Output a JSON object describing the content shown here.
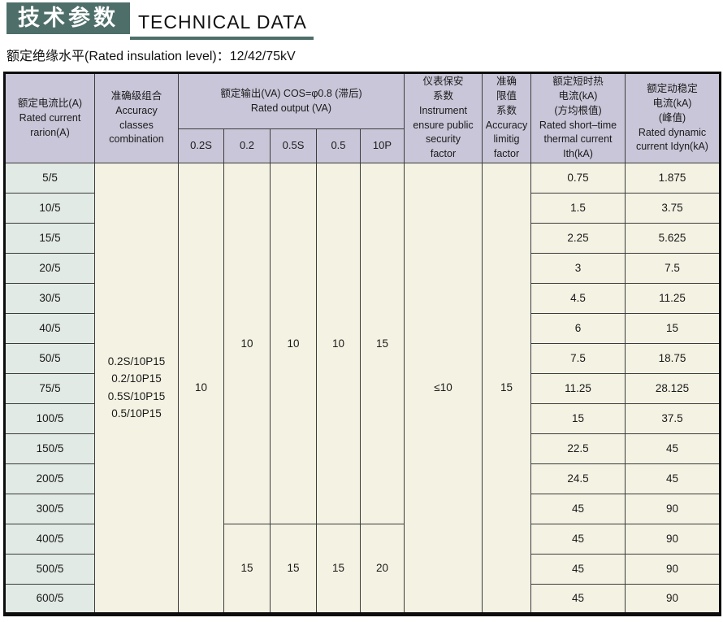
{
  "page": {
    "title_zh": "技术参数",
    "title_en": "TECHNICAL DATA",
    "subtitle": "额定绝缘水平(Rated insulation level)：12/42/75kV"
  },
  "colors": {
    "accent_dark": "#4e6e69",
    "header_bg": "#cac6d9",
    "ratio_col_bg": "#e1eae5",
    "body_bg": "#f4f2e3"
  },
  "table": {
    "headers": {
      "ratio": "额定电流比(A)\nRated current\nrarion(A)",
      "accuracy_classes": "准确级组合\nAccuracy\nclasses\ncombination",
      "rated_output": "额定输出(VA) COS=φ0.8 (滞后)\nRated output (VA)",
      "output_subcols": [
        "0.2S",
        "0.2",
        "0.5S",
        "0.5",
        "10P"
      ],
      "instrument_factor": "仪表保安\n系数\nInstrument\nensure public\nsecurity\nfactor",
      "accuracy_limit": "准确\n限值\n系数\nAccuracy\nlimitig\nfactor",
      "ith": "额定短时热\n电流(kA)\n(方均根值)\nRated short–time\nthermal current\nIth(kA)",
      "idyn": "额定动稳定\n电流(kA)\n(峰值)\nRated dynamic\ncurrent Idyn(kA)"
    },
    "body": {
      "ratios": [
        "5/5",
        "10/5",
        "15/5",
        "20/5",
        "30/5",
        "40/5",
        "50/5",
        "75/5",
        "100/5",
        "150/5",
        "200/5",
        "300/5",
        "400/5",
        "500/5",
        "600/5"
      ],
      "accuracy_classes_combination": "0.2S/10P15\n0.2/10P15\n0.5S/10P15\n0.5/10P15",
      "output_0_2s": "10",
      "output_rows_1_12": [
        "10",
        "10",
        "10",
        "15"
      ],
      "output_rows_13_15": [
        "15",
        "15",
        "15",
        "20"
      ],
      "instrument_security_factor": "≤10",
      "accuracy_limiting_factor": "15",
      "ith": [
        "0.75",
        "1.5",
        "2.25",
        "3",
        "4.5",
        "6",
        "7.5",
        "11.25",
        "15",
        "22.5",
        "24.5",
        "45",
        "45",
        "45",
        "45"
      ],
      "idyn": [
        "1.875",
        "3.75",
        "5.625",
        "7.5",
        "11.25",
        "15",
        "18.75",
        "28.125",
        "37.5",
        "45",
        "45",
        "90",
        "90",
        "90",
        "90"
      ]
    }
  }
}
